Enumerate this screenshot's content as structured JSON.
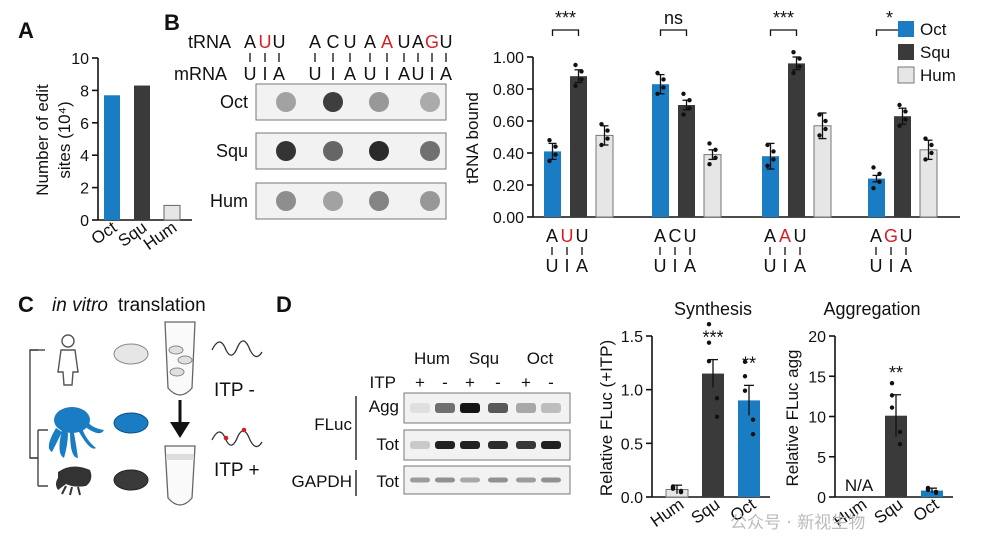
{
  "colors": {
    "oct": "#1a7dc4",
    "squ": "#3a3a3a",
    "hum": "#e6e6e6",
    "red": "#d32027",
    "blot_bg": "#f2f2f2"
  },
  "panel_labels": {
    "a": "A",
    "b": "B",
    "c": "C",
    "d": "D"
  },
  "panelA": {
    "ylabel_line1": "Number of edit",
    "ylabel_line2": "sites (10⁴)",
    "chart_data": {
      "type": "bar",
      "categories": [
        "Oct",
        "Squ",
        "Hum"
      ],
      "values": [
        7.7,
        8.3,
        0.9
      ],
      "ylim": [
        0,
        10
      ],
      "yticks": [
        "0",
        "2",
        "4",
        "6",
        "8",
        "10"
      ]
    }
  },
  "panelB_blot": {
    "trna_label": "tRNA",
    "mrna_label": "mRNA",
    "codons": [
      {
        "a": "A",
        "b": "U",
        "c": "U",
        "red": 1
      },
      {
        "a": "A",
        "b": "C",
        "c": "U",
        "red": -1
      },
      {
        "a": "A",
        "b": "A",
        "c": "U",
        "red": 1
      },
      {
        "a": "A",
        "b": "G",
        "c": "U",
        "red": 1
      }
    ],
    "mrna_letters": [
      "U",
      "I",
      "A"
    ],
    "rows": [
      "Oct",
      "Squ",
      "Hum"
    ]
  },
  "panelB_chart": {
    "ylabel": "tRNA bound",
    "sig": [
      "***",
      "ns",
      "***",
      "*"
    ],
    "legend": [
      "Oct",
      "Squ",
      "Hum"
    ],
    "chart_data": {
      "type": "bar",
      "categories": [
        "AUU",
        "ACU",
        "AAU",
        "AGU"
      ],
      "ylim": [
        0,
        1
      ],
      "yticks": [
        "0.00",
        "0.20",
        "0.40",
        "0.60",
        "0.80",
        "1.00"
      ],
      "series": [
        {
          "name": "Oct",
          "values": [
            0.41,
            0.83,
            0.38,
            0.24
          ],
          "err": [
            0.05,
            0.06,
            0.08,
            0.02
          ]
        },
        {
          "name": "Squ",
          "values": [
            0.88,
            0.7,
            0.96,
            0.63
          ],
          "err": [
            0.04,
            0.03,
            0.04,
            0.05
          ]
        },
        {
          "name": "Hum",
          "values": [
            0.51,
            0.39,
            0.57,
            0.42
          ],
          "err": [
            0.06,
            0.03,
            0.08,
            0.06
          ]
        }
      ]
    }
  },
  "panelC": {
    "title_italic": "in vitro",
    "title_rest": " translation",
    "itp_minus": "ITP -",
    "itp_plus": "ITP +"
  },
  "panelD_blot": {
    "groups": [
      "Hum",
      "Squ",
      "Oct"
    ],
    "itp_label": "ITP",
    "itp_signs": [
      "+",
      "-",
      "+",
      "-",
      "+",
      "-"
    ],
    "fluc": "FLuc",
    "agg": "Agg",
    "tot": "Tot",
    "gapdh": "GAPDH"
  },
  "panelD_synthesis": {
    "title": "Synthesis",
    "ylabel": "Relative FLuc (+ITP)",
    "sig": [
      "",
      "***",
      "**"
    ],
    "chart_data": {
      "type": "bar",
      "categories": [
        "Hum",
        "Squ",
        "Oct"
      ],
      "values": [
        0.07,
        1.15,
        0.9
      ],
      "err": [
        0.04,
        0.13,
        0.14
      ],
      "ylim": [
        0,
        1.5
      ],
      "yticks": [
        "0.0",
        "0.5",
        "1.0",
        "1.5"
      ]
    }
  },
  "panelD_aggregation": {
    "title": "Aggregation",
    "ylabel": "Relative FLuc agg",
    "sig": [
      "",
      "**",
      ""
    ],
    "na_label": "N/A",
    "chart_data": {
      "type": "bar",
      "categories": [
        "Hum",
        "Squ",
        "Oct"
      ],
      "values": [
        0,
        10.1,
        0.8
      ],
      "err": [
        0,
        2.6,
        0.3
      ],
      "ylim": [
        0,
        20
      ],
      "yticks": [
        "0",
        "5",
        "10",
        "15",
        "20"
      ]
    }
  },
  "watermark": "公众号 · 新视生物"
}
